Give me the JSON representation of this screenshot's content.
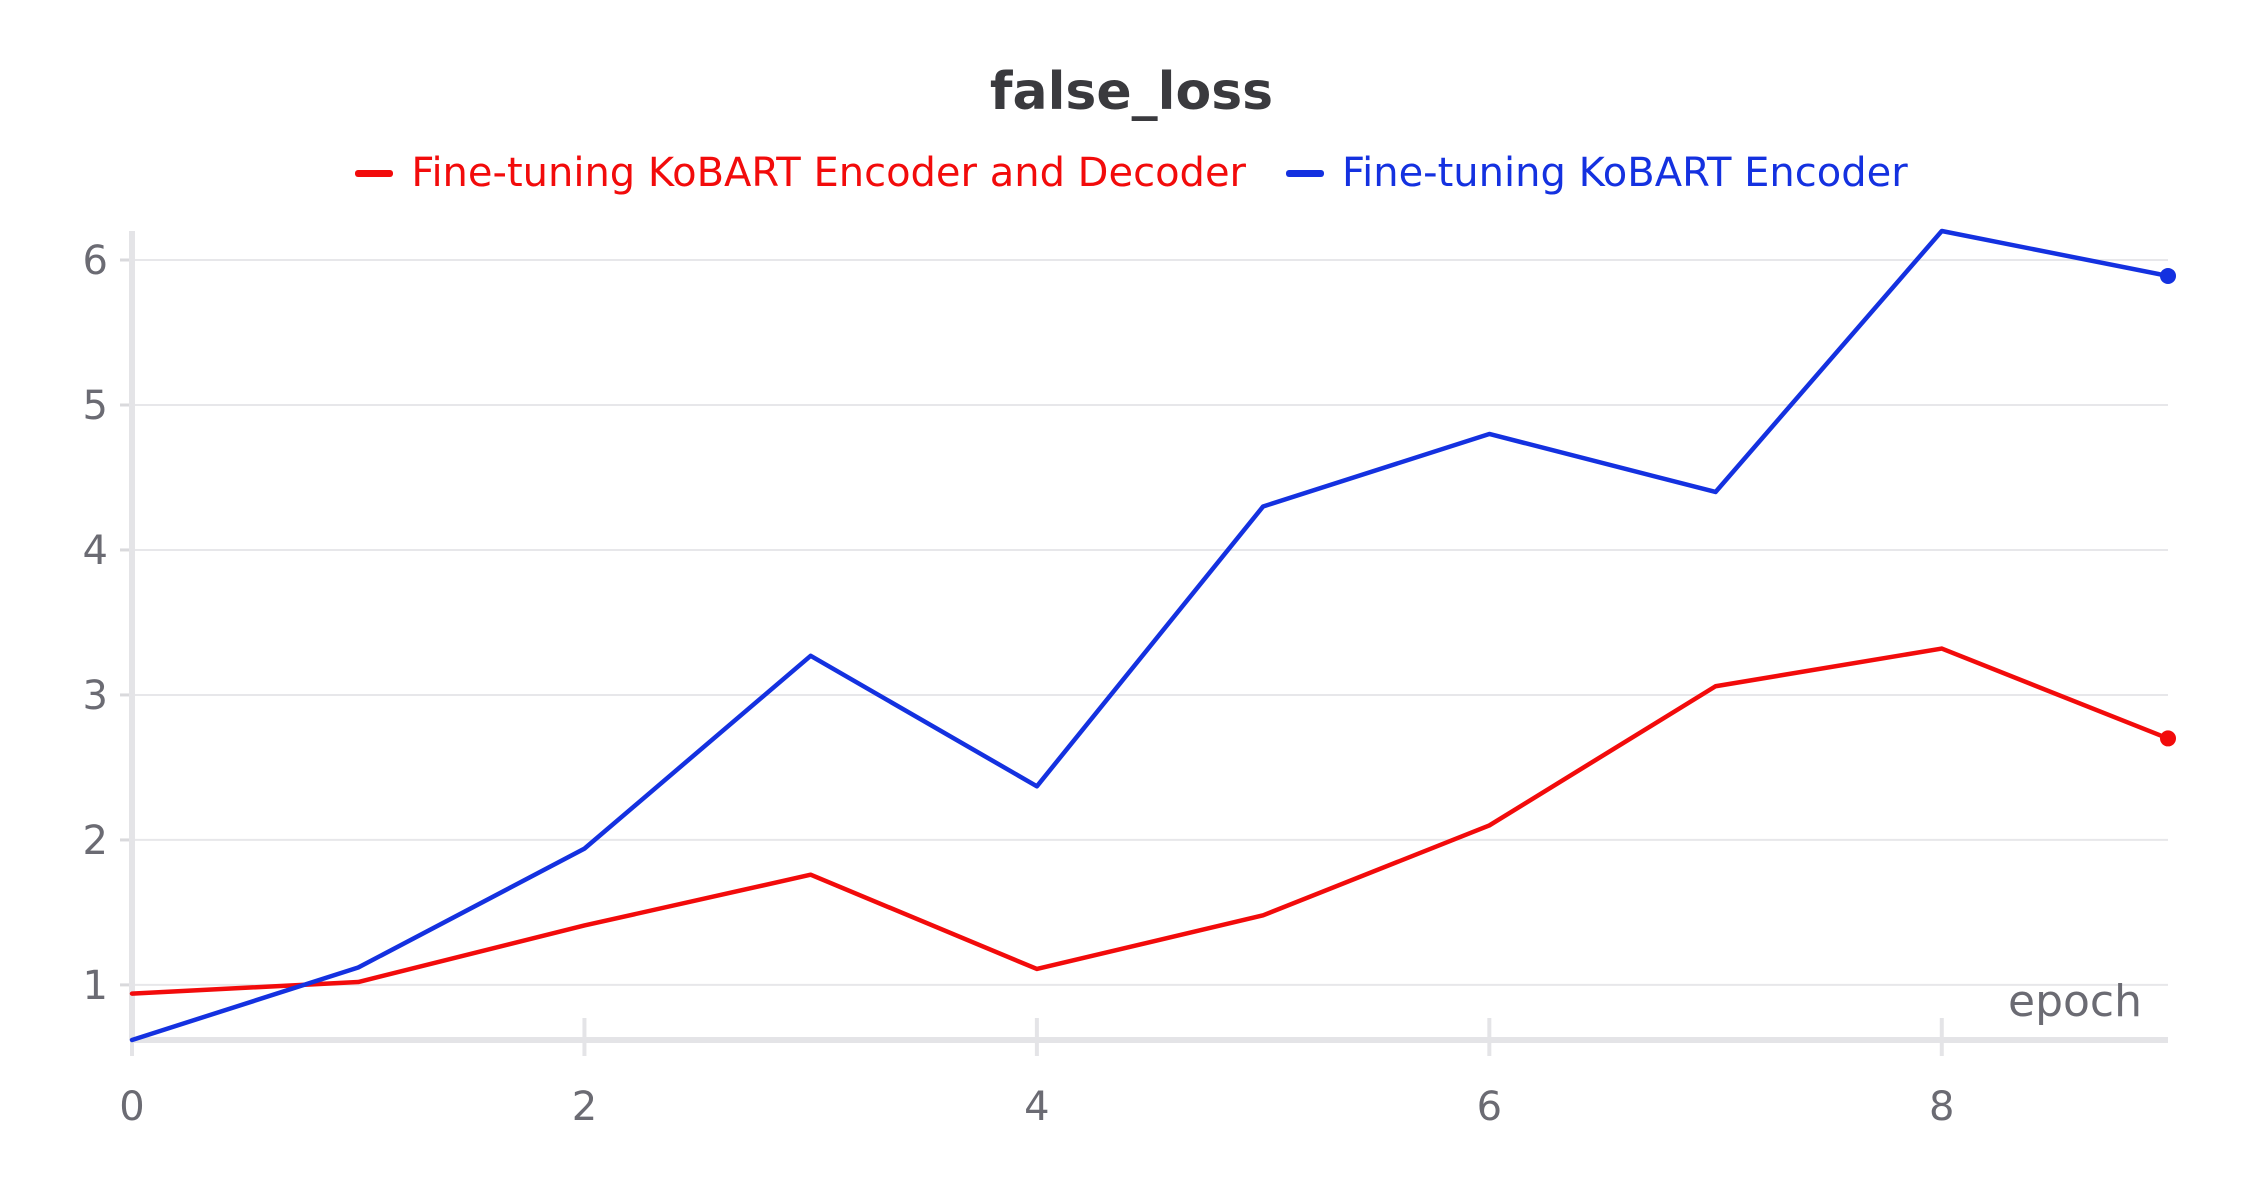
{
  "chart_data": {
    "type": "line",
    "title": "false_loss",
    "xlabel": "epoch",
    "ylabel": "",
    "xlim": [
      0,
      9
    ],
    "ylim": [
      0.62,
      6.2
    ],
    "xticks": [
      0,
      2,
      4,
      6,
      8
    ],
    "yticks": [
      1,
      2,
      3,
      4,
      5,
      6
    ],
    "grid": "horizontal",
    "legend_position": "top-center",
    "x": [
      0,
      1,
      2,
      3,
      4,
      5,
      6,
      7,
      8,
      9
    ],
    "series": [
      {
        "name": "Fine-tuning KoBART Encoder and Decoder",
        "color": "#f20b0b",
        "values": [
          0.94,
          1.02,
          1.41,
          1.76,
          1.11,
          1.48,
          2.1,
          3.06,
          3.32,
          2.7
        ]
      },
      {
        "name": "Fine-tuning KoBART Encoder",
        "color": "#1431e0",
        "values": [
          0.62,
          1.12,
          1.94,
          3.27,
          2.37,
          4.3,
          4.8,
          4.4,
          6.2,
          5.89
        ]
      }
    ]
  }
}
